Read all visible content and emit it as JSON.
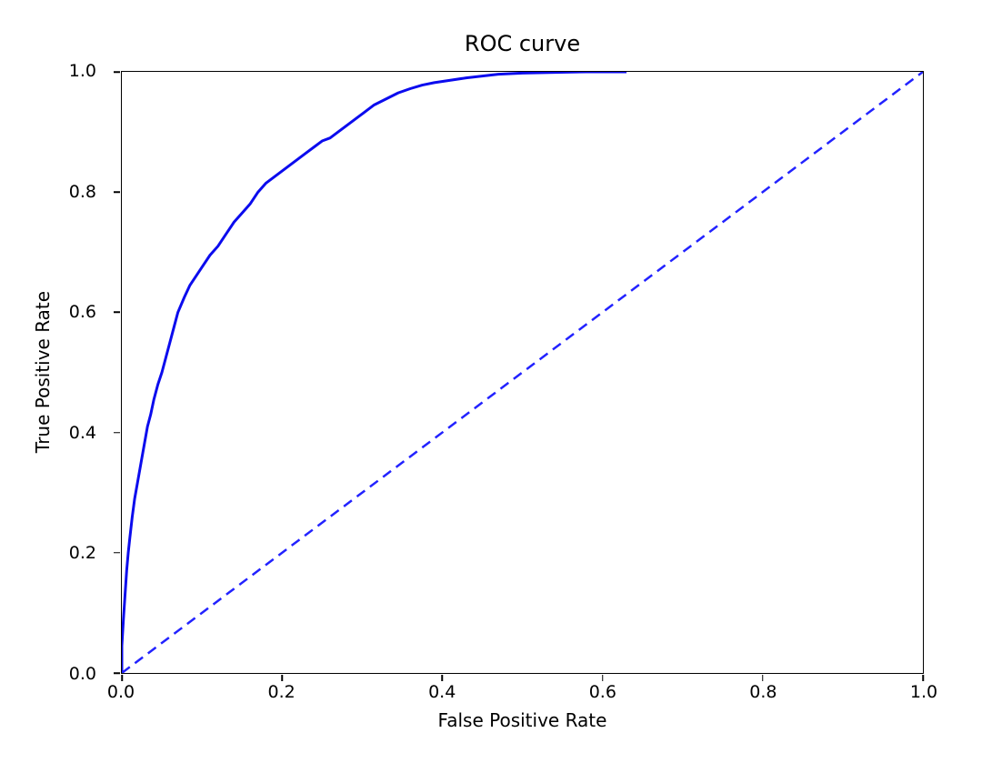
{
  "chart_data": {
    "type": "line",
    "title": "ROC curve",
    "xlabel": "False Positive Rate",
    "ylabel": "True Positive Rate",
    "xlim": [
      0.0,
      1.0
    ],
    "ylim": [
      0.0,
      1.0
    ],
    "xticks": [
      0.0,
      0.2,
      0.4,
      0.6,
      0.8,
      1.0
    ],
    "xtick_labels": [
      "0.0",
      "0.2",
      "0.4",
      "0.6",
      "0.8",
      "1.0"
    ],
    "yticks": [
      0.0,
      0.2,
      0.4,
      0.6,
      0.8,
      1.0
    ],
    "ytick_labels": [
      "0.0",
      "0.2",
      "0.4",
      "0.6",
      "0.8",
      "1.0"
    ],
    "grid": false,
    "legend": "none",
    "colors": {
      "roc_line": "#0b0bee",
      "chance_line": "#2222ff",
      "axes": "#000000",
      "background": "#ffffff"
    },
    "series": [
      {
        "name": "roc-curve",
        "style": "solid",
        "color": "#0b0bee",
        "width": 3,
        "points": [
          [
            0.0,
            0.0
          ],
          [
            0.0,
            0.045
          ],
          [
            0.002,
            0.09
          ],
          [
            0.004,
            0.13
          ],
          [
            0.006,
            0.17
          ],
          [
            0.008,
            0.2
          ],
          [
            0.01,
            0.225
          ],
          [
            0.013,
            0.26
          ],
          [
            0.016,
            0.29
          ],
          [
            0.02,
            0.32
          ],
          [
            0.024,
            0.35
          ],
          [
            0.028,
            0.38
          ],
          [
            0.032,
            0.41
          ],
          [
            0.036,
            0.43
          ],
          [
            0.04,
            0.455
          ],
          [
            0.045,
            0.48
          ],
          [
            0.05,
            0.5
          ],
          [
            0.055,
            0.525
          ],
          [
            0.06,
            0.55
          ],
          [
            0.065,
            0.575
          ],
          [
            0.07,
            0.6
          ],
          [
            0.078,
            0.625
          ],
          [
            0.085,
            0.645
          ],
          [
            0.09,
            0.655
          ],
          [
            0.095,
            0.665
          ],
          [
            0.1,
            0.675
          ],
          [
            0.11,
            0.695
          ],
          [
            0.12,
            0.71
          ],
          [
            0.13,
            0.73
          ],
          [
            0.14,
            0.75
          ],
          [
            0.15,
            0.765
          ],
          [
            0.16,
            0.78
          ],
          [
            0.17,
            0.8
          ],
          [
            0.18,
            0.815
          ],
          [
            0.19,
            0.825
          ],
          [
            0.2,
            0.835
          ],
          [
            0.21,
            0.845
          ],
          [
            0.22,
            0.855
          ],
          [
            0.23,
            0.865
          ],
          [
            0.24,
            0.875
          ],
          [
            0.25,
            0.885
          ],
          [
            0.26,
            0.89
          ],
          [
            0.27,
            0.9
          ],
          [
            0.285,
            0.915
          ],
          [
            0.3,
            0.93
          ],
          [
            0.315,
            0.945
          ],
          [
            0.33,
            0.955
          ],
          [
            0.345,
            0.965
          ],
          [
            0.36,
            0.972
          ],
          [
            0.375,
            0.978
          ],
          [
            0.39,
            0.982
          ],
          [
            0.41,
            0.986
          ],
          [
            0.43,
            0.99
          ],
          [
            0.45,
            0.993
          ],
          [
            0.47,
            0.996
          ],
          [
            0.5,
            0.998
          ],
          [
            0.54,
            0.999
          ],
          [
            0.58,
            1.0
          ],
          [
            0.63,
            1.0
          ]
        ]
      },
      {
        "name": "chance-diagonal",
        "style": "dashed",
        "color": "#2222ff",
        "width": 2.5,
        "points": [
          [
            0.0,
            0.0
          ],
          [
            1.0,
            1.0
          ]
        ]
      }
    ]
  }
}
